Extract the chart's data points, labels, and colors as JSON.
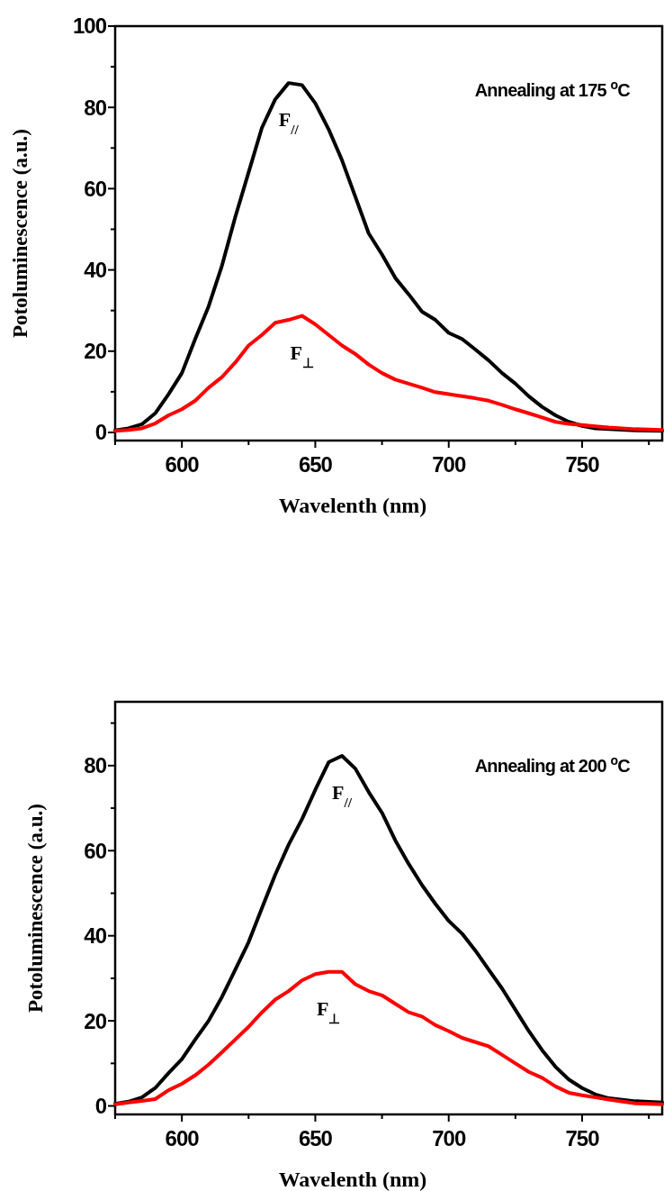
{
  "chart_data": [
    {
      "type": "line",
      "xlabel": "Wavelenth (nm)",
      "ylabel": "Potoluminescence (a.u.)",
      "annotations": [
        "Annealing at 175 $^{o}$C"
      ],
      "x": [
        575,
        580,
        585,
        590,
        595,
        600,
        605,
        610,
        615,
        620,
        625,
        630,
        635,
        640,
        645,
        650,
        655,
        660,
        665,
        670,
        675,
        680,
        685,
        690,
        695,
        700,
        705,
        710,
        715,
        720,
        725,
        730,
        735,
        740,
        745,
        750,
        755,
        760,
        770,
        780
      ],
      "series": [
        {
          "name": "F$_{//}$",
          "color": "#000000",
          "values": [
            0.5,
            1,
            2,
            4.7,
            9.4,
            14.6,
            23,
            31,
            41,
            53,
            64,
            75,
            82,
            86,
            85.5,
            81,
            74.6,
            67,
            58,
            49,
            43.8,
            38,
            34,
            29.7,
            27.7,
            24.5,
            23,
            20.4,
            17.7,
            14.6,
            12,
            8.9,
            6.3,
            4.2,
            2.6,
            1.6,
            1.0,
            0.8,
            0.5,
            0.4
          ]
        },
        {
          "name": "F$_{⊥}$",
          "color": "#ff0000",
          "values": [
            0.4,
            0.6,
            1.0,
            2.2,
            4.2,
            5.7,
            7.8,
            11,
            13.6,
            17.2,
            21.4,
            24,
            27,
            27.7,
            28.7,
            26.6,
            24,
            21.4,
            19.3,
            16.7,
            14.6,
            13,
            12,
            11,
            9.9,
            9.4,
            8.9,
            8.4,
            7.8,
            6.8,
            5.7,
            4.7,
            3.7,
            2.6,
            2.1,
            1.8,
            1.5,
            1.2,
            0.8,
            0.6
          ]
        }
      ],
      "xlim": [
        575,
        780
      ],
      "ylim": [
        -2,
        100
      ],
      "xticks": [
        {
          "value": 575,
          "label": null
        },
        600,
        {
          "value": 625,
          "label": null
        },
        650,
        {
          "value": 675,
          "label": null
        },
        700,
        {
          "value": 725,
          "label": null
        },
        750,
        {
          "value": 775,
          "label": null
        }
      ],
      "yticks": [
        0,
        {
          "value": 10,
          "label": null
        },
        20,
        {
          "value": 30,
          "label": null
        },
        40,
        {
          "value": 50,
          "label": null
        },
        60,
        {
          "value": 70,
          "label": null
        },
        80,
        {
          "value": 90,
          "label": null
        },
        100
      ]
    },
    {
      "type": "line",
      "xlabel": "Wavelenth (nm)",
      "ylabel": "Potoluminescence (a.u.)",
      "annotations": [
        "Annealing at 200 $^{o}$C"
      ],
      "x": [
        575,
        580,
        585,
        590,
        595,
        600,
        605,
        610,
        615,
        620,
        625,
        630,
        635,
        640,
        645,
        650,
        655,
        660,
        665,
        670,
        675,
        680,
        685,
        690,
        695,
        700,
        705,
        710,
        715,
        720,
        725,
        730,
        735,
        740,
        745,
        750,
        755,
        760,
        770,
        780
      ],
      "series": [
        {
          "name": "F$_{//}$",
          "color": "#000000",
          "values": [
            0.5,
            1,
            2,
            4.2,
            7.7,
            11,
            15.6,
            20,
            25.6,
            32,
            38.5,
            46.5,
            54.4,
            61.4,
            67.4,
            74.3,
            80.8,
            82.3,
            79.3,
            73.8,
            68.9,
            62.4,
            56.9,
            51.9,
            47.5,
            43.5,
            40.5,
            36.5,
            32,
            27.6,
            22.6,
            17.6,
            13.1,
            9.2,
            6.2,
            4.2,
            2.7,
            1.8,
            1.1,
            0.8
          ]
        },
        {
          "name": "F$_{⊥}$",
          "color": "#ff0000",
          "values": [
            0.4,
            0.8,
            1.2,
            1.6,
            3.7,
            5.2,
            7.2,
            9.7,
            12.6,
            15.6,
            18.6,
            22,
            25,
            27,
            29.5,
            31,
            31.5,
            31.5,
            28.6,
            27,
            26,
            24,
            22,
            21,
            19,
            17.6,
            16,
            15,
            14,
            12,
            10,
            8,
            6.6,
            4.6,
            3.1,
            2.5,
            2,
            1.5,
            0.6,
            0.4
          ]
        }
      ],
      "xlim": [
        575,
        780
      ],
      "ylim": [
        -2,
        95
      ],
      "xticks": [
        {
          "value": 575,
          "label": null
        },
        600,
        {
          "value": 625,
          "label": null
        },
        650,
        {
          "value": 675,
          "label": null
        },
        700,
        {
          "value": 725,
          "label": null
        },
        750,
        {
          "value": 775,
          "label": null
        }
      ],
      "yticks": [
        0,
        {
          "value": 10,
          "label": null
        },
        20,
        {
          "value": 30,
          "label": null
        },
        40,
        {
          "value": 50,
          "label": null
        },
        60,
        {
          "value": 70,
          "label": null
        },
        80,
        {
          "value": 90,
          "label": null
        }
      ]
    }
  ]
}
